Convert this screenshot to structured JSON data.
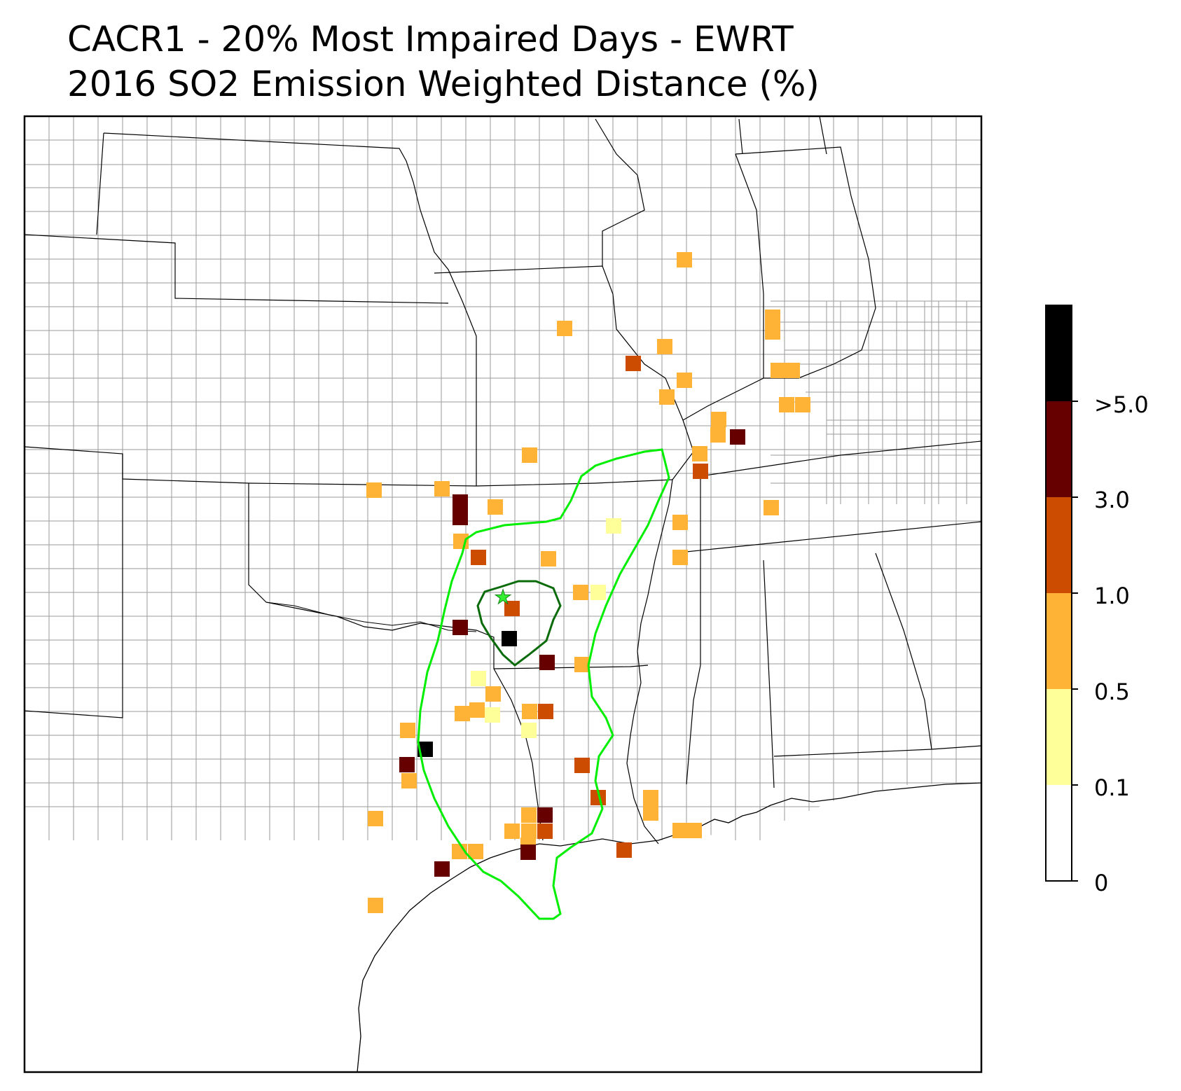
{
  "title": {
    "line1": "CACR1 - 20% Most Impaired Days - EWRT",
    "line2": "2016 SO2 Emission Weighted Distance (%)"
  },
  "colorbar": {
    "bins": [
      {
        "label": "0",
        "color": "#ffffff"
      },
      {
        "label": "0.1",
        "color": "#ffff99"
      },
      {
        "label": "0.5",
        "color": "#feb236"
      },
      {
        "label": "1.0",
        "color": "#cc4c02"
      },
      {
        "label": "3.0",
        "color": "#660000"
      },
      {
        "label": ">5.0",
        "color": "#000000"
      }
    ]
  },
  "map": {
    "site_marker": "star-icon",
    "site_marker_color": "#33ee33",
    "inner_contour_color": "#006400",
    "outer_contour_color": "#00ee00"
  }
}
